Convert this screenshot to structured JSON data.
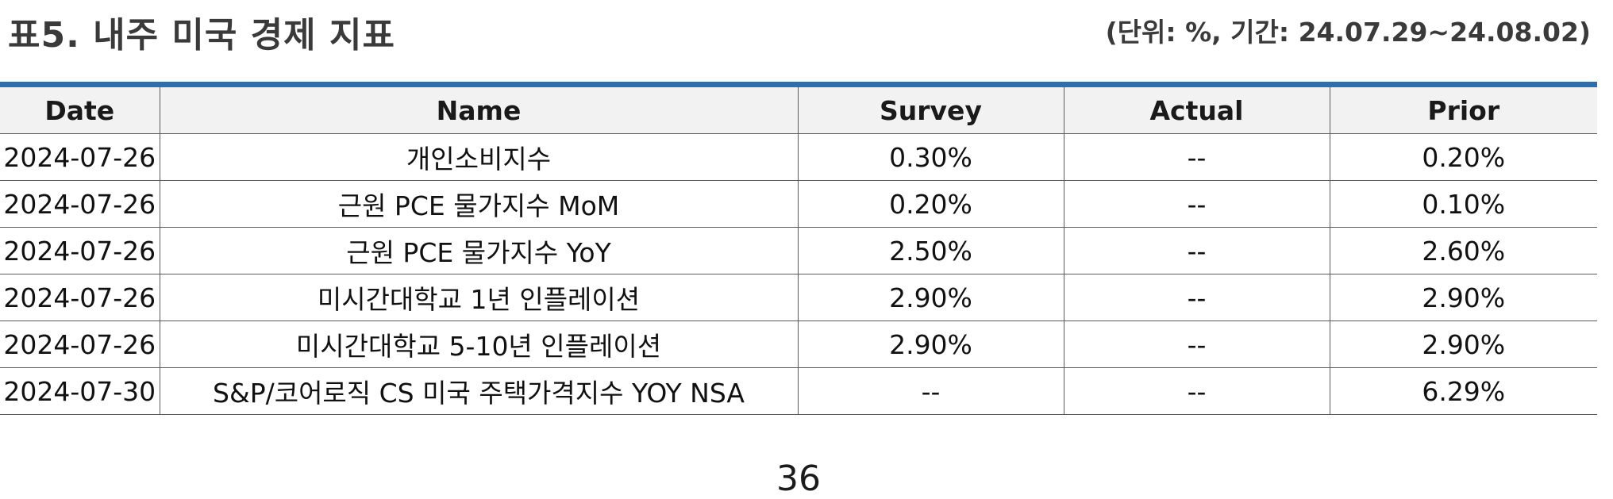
{
  "header": {
    "title": "표5. 내주 미국 경제 지표",
    "unit_note": "(단위: %, 기간: 24.07.29~24.08.02)"
  },
  "colors": {
    "rule": "#2e6eac",
    "header_bg": "#f2f2f2"
  },
  "table": {
    "columns": [
      "Date",
      "Name",
      "Survey",
      "Actual",
      "Prior"
    ],
    "rows": [
      [
        "2024-07-26",
        "개인소비지수",
        "0.30%",
        "--",
        "0.20%"
      ],
      [
        "2024-07-26",
        "근원 PCE 물가지수 MoM",
        "0.20%",
        "--",
        "0.10%"
      ],
      [
        "2024-07-26",
        "근원 PCE 물가지수 YoY",
        "2.50%",
        "--",
        "2.60%"
      ],
      [
        "2024-07-26",
        "미시간대학교 1년 인플레이션",
        "2.90%",
        "--",
        "2.90%"
      ],
      [
        "2024-07-26",
        "미시간대학교 5-10년 인플레이션",
        "2.90%",
        "--",
        "2.90%"
      ],
      [
        "2024-07-30",
        "S&P/코어로직 CS 미국 주택가격지수 YOY NSA",
        "--",
        "--",
        "6.29%"
      ]
    ]
  },
  "footer": {
    "page_number": "36"
  }
}
